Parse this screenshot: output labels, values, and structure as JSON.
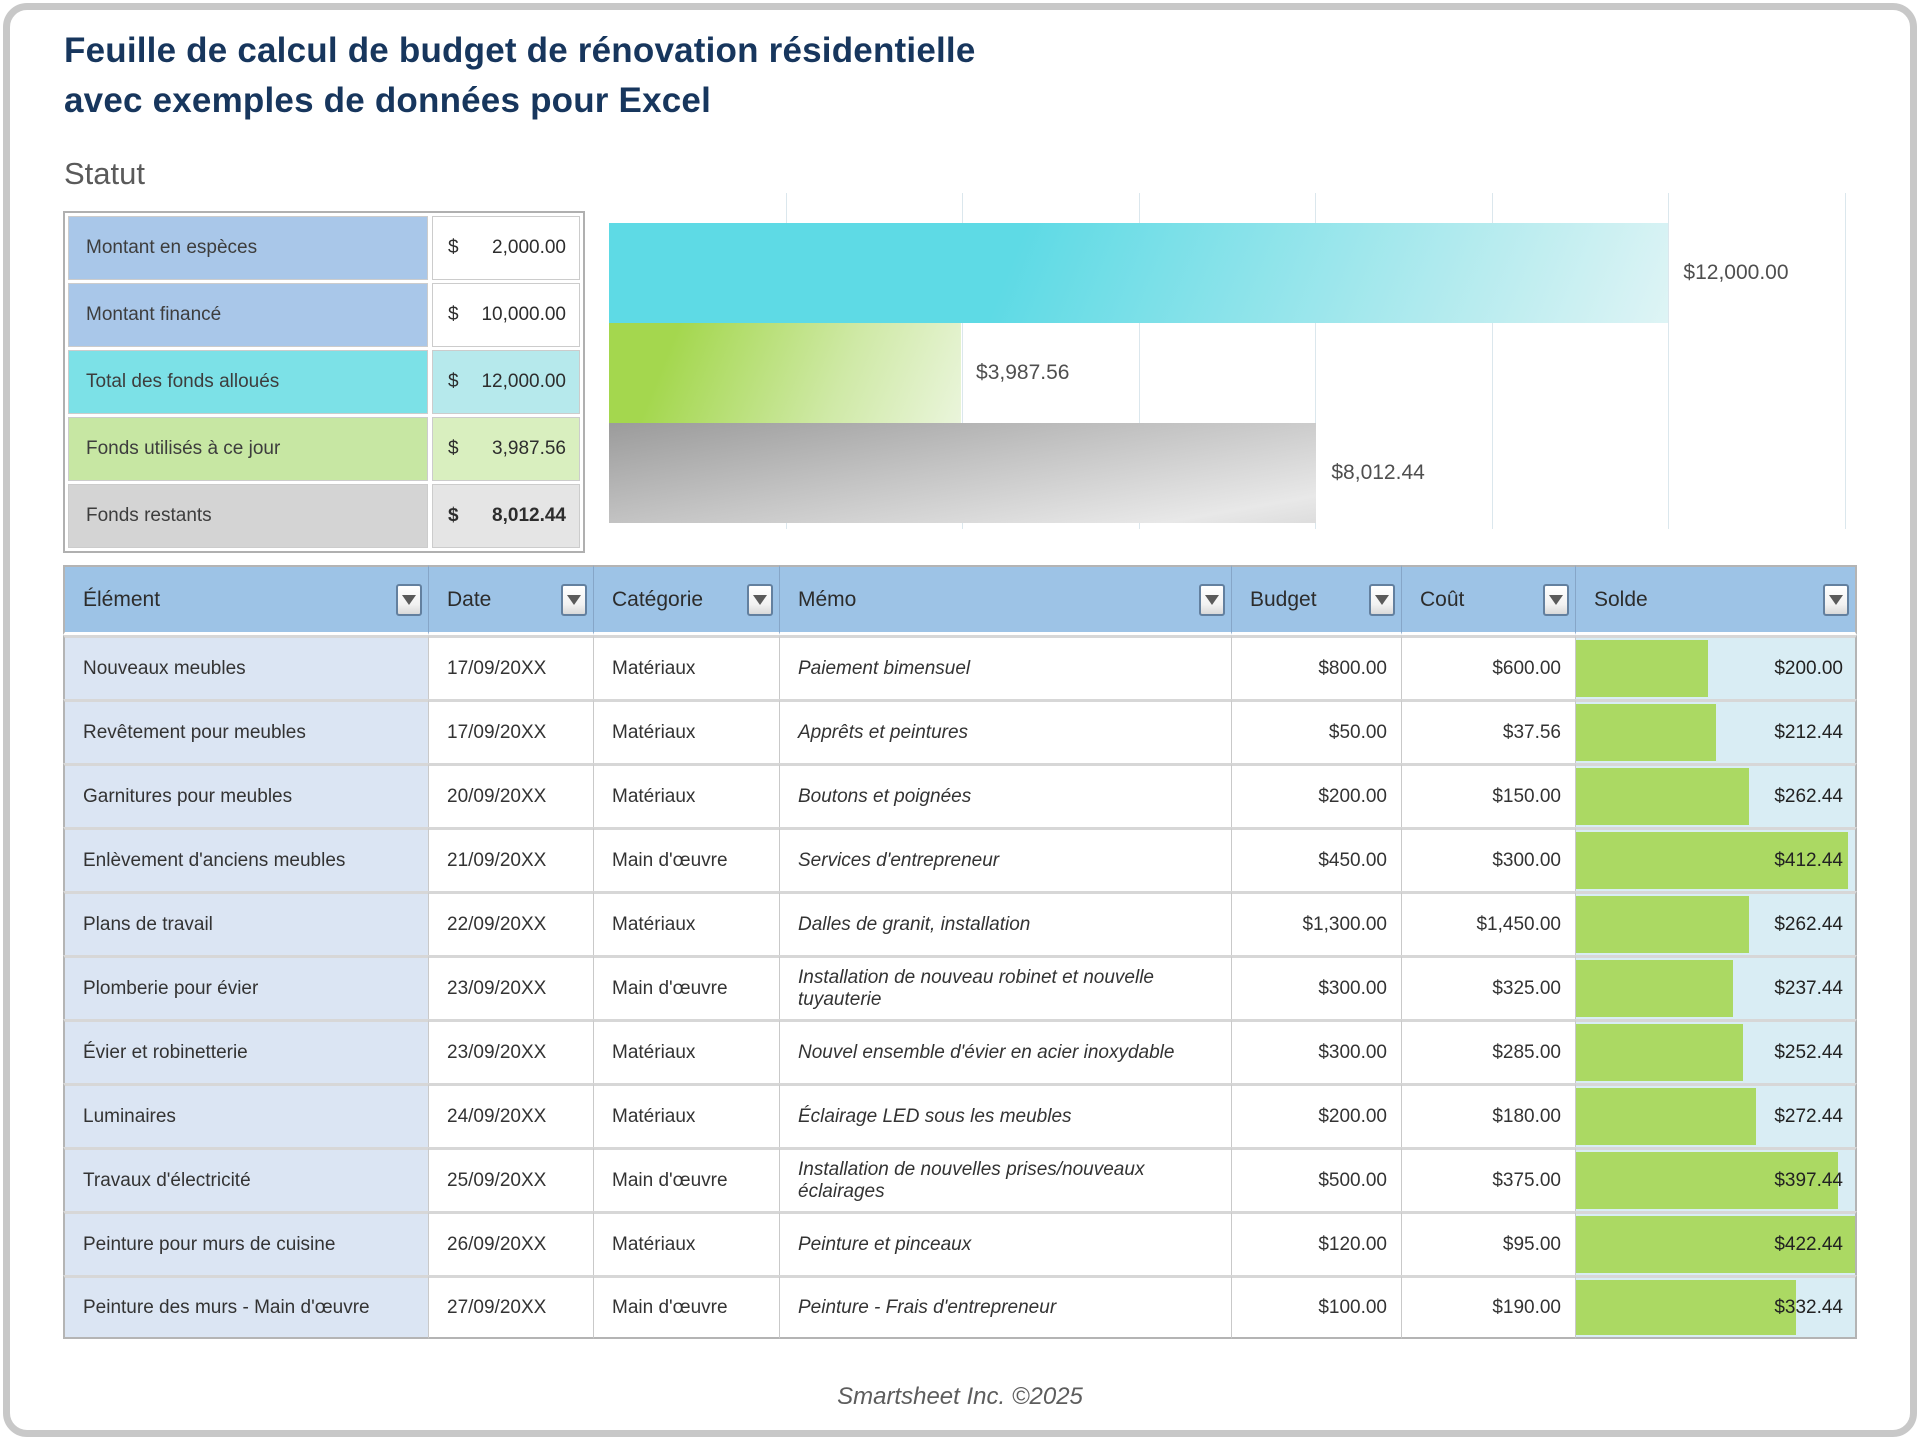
{
  "title": {
    "line1": "Feuille de calcul de budget de rénovation résidentielle",
    "line2": "avec exemples de données pour Excel"
  },
  "status": {
    "label": "Statut",
    "rows": [
      {
        "label": "Montant en espèces",
        "currency": "$",
        "value": "2,000.00",
        "variant": "blue",
        "bold": false
      },
      {
        "label": "Montant financé",
        "currency": "$",
        "value": "10,000.00",
        "variant": "blue",
        "bold": false
      },
      {
        "label": "Total des fonds alloués",
        "currency": "$",
        "value": "12,000.00",
        "variant": "teal",
        "bold": false
      },
      {
        "label": "Fonds utilisés à ce jour",
        "currency": "$",
        "value": "3,987.56",
        "variant": "green",
        "bold": false
      },
      {
        "label": "Fonds restants",
        "currency": "$",
        "value": "8,012.44",
        "variant": "gray",
        "bold": true
      }
    ]
  },
  "chart_data": {
    "type": "bar",
    "orientation": "horizontal",
    "categories": [
      "Total des fonds alloués",
      "Fonds utilisés à ce jour",
      "Fonds restants"
    ],
    "values": [
      12000,
      3987.56,
      8012.44
    ],
    "data_labels": [
      "$12,000.00",
      "$3,987.56",
      "$8,012.44"
    ],
    "bar_styles": [
      "teal",
      "green",
      "gray"
    ],
    "bar_colors": [
      "#5edae5",
      "#a4d74e",
      "#9b9b9b"
    ],
    "xlim": [
      0,
      14000
    ],
    "gridline_interval": 2000,
    "grid": true,
    "legend": false,
    "title": "",
    "xlabel": "",
    "ylabel": ""
  },
  "table": {
    "columns": [
      {
        "key": "element",
        "label": "Élément"
      },
      {
        "key": "date",
        "label": "Date"
      },
      {
        "key": "category",
        "label": "Catégorie"
      },
      {
        "key": "memo",
        "label": "Mémo"
      },
      {
        "key": "budget",
        "label": "Budget"
      },
      {
        "key": "cost",
        "label": "Coût"
      },
      {
        "key": "balance",
        "label": "Solde"
      }
    ],
    "balance_axis_max": 422.44,
    "rows": [
      {
        "element": "Nouveaux meubles",
        "date": "17/09/20XX",
        "category": "Matériaux",
        "memo": "Paiement bimensuel",
        "budget": "$800.00",
        "cost": "$600.00",
        "balance": "$200.00",
        "balance_value": 200.0
      },
      {
        "element": "Revêtement pour meubles",
        "date": "17/09/20XX",
        "category": "Matériaux",
        "memo": "Apprêts et peintures",
        "budget": "$50.00",
        "cost": "$37.56",
        "balance": "$212.44",
        "balance_value": 212.44
      },
      {
        "element": "Garnitures pour meubles",
        "date": "20/09/20XX",
        "category": "Matériaux",
        "memo": "Boutons et poignées",
        "budget": "$200.00",
        "cost": "$150.00",
        "balance": "$262.44",
        "balance_value": 262.44
      },
      {
        "element": "Enlèvement d'anciens meubles",
        "date": "21/09/20XX",
        "category": "Main d'œuvre",
        "memo": "Services d'entrepreneur",
        "budget": "$450.00",
        "cost": "$300.00",
        "balance": "$412.44",
        "balance_value": 412.44
      },
      {
        "element": "Plans de travail",
        "date": "22/09/20XX",
        "category": "Matériaux",
        "memo": "Dalles de granit, installation",
        "budget": "$1,300.00",
        "cost": "$1,450.00",
        "balance": "$262.44",
        "balance_value": 262.44
      },
      {
        "element": "Plomberie pour évier",
        "date": "23/09/20XX",
        "category": "Main d'œuvre",
        "memo": "Installation de nouveau robinet et nouvelle tuyauterie",
        "budget": "$300.00",
        "cost": "$325.00",
        "balance": "$237.44",
        "balance_value": 237.44
      },
      {
        "element": "Évier et robinetterie",
        "date": "23/09/20XX",
        "category": "Matériaux",
        "memo": "Nouvel ensemble d'évier en acier inoxydable",
        "budget": "$300.00",
        "cost": "$285.00",
        "balance": "$252.44",
        "balance_value": 252.44
      },
      {
        "element": "Luminaires",
        "date": "24/09/20XX",
        "category": "Matériaux",
        "memo": "Éclairage LED sous les meubles",
        "budget": "$200.00",
        "cost": "$180.00",
        "balance": "$272.44",
        "balance_value": 272.44
      },
      {
        "element": "Travaux d'électricité",
        "date": "25/09/20XX",
        "category": "Main d'œuvre",
        "memo": "Installation de nouvelles prises/nouveaux éclairages",
        "budget": "$500.00",
        "cost": "$375.00",
        "balance": "$397.44",
        "balance_value": 397.44
      },
      {
        "element": "Peinture pour murs de cuisine",
        "date": "26/09/20XX",
        "category": "Matériaux",
        "memo": "Peinture et pinceaux",
        "budget": "$120.00",
        "cost": "$95.00",
        "balance": "$422.44",
        "balance_value": 422.44
      },
      {
        "element": "Peinture des murs - Main d'œuvre",
        "date": "27/09/20XX",
        "category": "Main d'œuvre",
        "memo": "Peinture - Frais d'entrepreneur",
        "budget": "$100.00",
        "cost": "$190.00",
        "balance": "$332.44",
        "balance_value": 332.44
      }
    ]
  },
  "footer": {
    "text": "Smartsheet Inc. ©2025"
  },
  "colors": {
    "title": "#17365d",
    "header_bg": "#9dc3e6",
    "element_col_bg": "#dbe5f3",
    "balance_cell_bg": "#d9edf4",
    "balance_bar": "#abd963",
    "status_blue": "#a9c7e9",
    "status_teal": "#7ce1e7",
    "status_green": "#c7e7a3",
    "status_gray": "#d4d4d4",
    "chart_teal": "#5edae5",
    "chart_green": "#a4d74e",
    "chart_gray": "#9b9b9b",
    "frame_border": "#c8c8c8"
  }
}
